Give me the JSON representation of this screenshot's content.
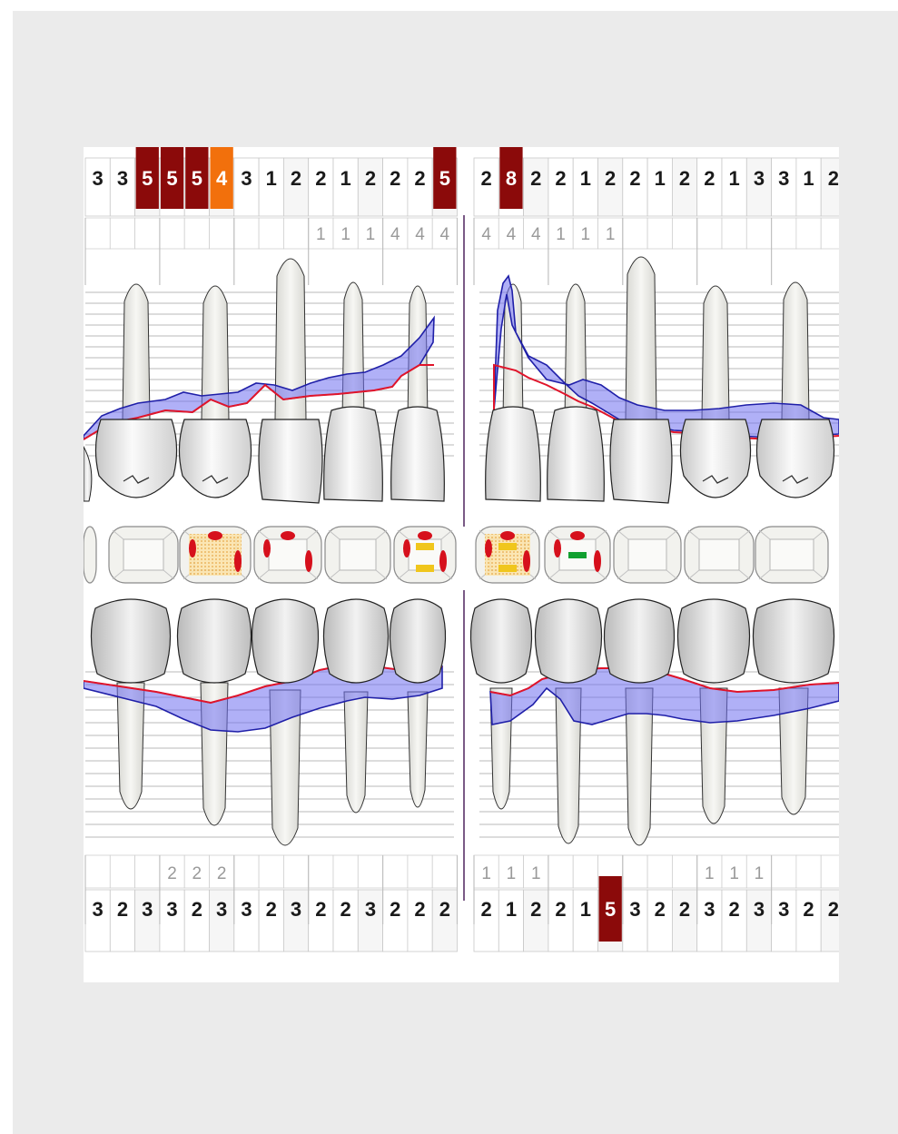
{
  "colors": {
    "frame": "#ebebeb",
    "severe": "#8b0a0a",
    "moderate": "#f2700c",
    "pocket_fill": "#6f6ff0",
    "pocket_line": "#1f1fa8",
    "gingival_line": "#e0142a",
    "caries": "#d6101c",
    "filling": "#f0c61c",
    "sealant": "#11a030",
    "divider": "#7a5a86"
  },
  "upper": {
    "left_depths": [
      {
        "value": "3",
        "level": "normal"
      },
      {
        "value": "3",
        "level": "normal"
      },
      {
        "value": "5",
        "level": "severe"
      },
      {
        "value": "5",
        "level": "severe"
      },
      {
        "value": "5",
        "level": "severe"
      },
      {
        "value": "4",
        "level": "moderate"
      },
      {
        "value": "3",
        "level": "normal"
      },
      {
        "value": "1",
        "level": "normal"
      },
      {
        "value": "2",
        "level": "normal"
      },
      {
        "value": "2",
        "level": "normal"
      },
      {
        "value": "1",
        "level": "normal"
      },
      {
        "value": "2",
        "level": "normal"
      },
      {
        "value": "2",
        "level": "normal"
      },
      {
        "value": "2",
        "level": "normal"
      },
      {
        "value": "5",
        "level": "severe"
      }
    ],
    "right_depths": [
      {
        "value": "2",
        "level": "normal"
      },
      {
        "value": "8",
        "level": "severe"
      },
      {
        "value": "2",
        "level": "normal"
      },
      {
        "value": "2",
        "level": "normal"
      },
      {
        "value": "1",
        "level": "normal"
      },
      {
        "value": "2",
        "level": "normal"
      },
      {
        "value": "2",
        "level": "normal"
      },
      {
        "value": "1",
        "level": "normal"
      },
      {
        "value": "2",
        "level": "normal"
      },
      {
        "value": "2",
        "level": "normal"
      },
      {
        "value": "1",
        "level": "normal"
      },
      {
        "value": "3",
        "level": "normal"
      },
      {
        "value": "3",
        "level": "normal"
      },
      {
        "value": "1",
        "level": "normal"
      },
      {
        "value": "2",
        "level": "normal"
      }
    ],
    "left_recession": [
      "",
      "",
      "",
      "",
      "",
      "",
      "",
      "",
      "",
      "1",
      "1",
      "1",
      "4",
      "4",
      "4"
    ],
    "right_recession": [
      "4",
      "4",
      "4",
      "1",
      "1",
      "1",
      "",
      "",
      "",
      "",
      "",
      "",
      "",
      "",
      ""
    ]
  },
  "lower": {
    "left_depths": [
      {
        "value": "3",
        "level": "normal"
      },
      {
        "value": "2",
        "level": "normal"
      },
      {
        "value": "3",
        "level": "normal"
      },
      {
        "value": "3",
        "level": "normal"
      },
      {
        "value": "2",
        "level": "normal"
      },
      {
        "value": "3",
        "level": "normal"
      },
      {
        "value": "3",
        "level": "normal"
      },
      {
        "value": "2",
        "level": "normal"
      },
      {
        "value": "3",
        "level": "normal"
      },
      {
        "value": "2",
        "level": "normal"
      },
      {
        "value": "2",
        "level": "normal"
      },
      {
        "value": "3",
        "level": "normal"
      },
      {
        "value": "2",
        "level": "normal"
      },
      {
        "value": "2",
        "level": "normal"
      },
      {
        "value": "2",
        "level": "normal"
      }
    ],
    "right_depths": [
      {
        "value": "2",
        "level": "normal"
      },
      {
        "value": "1",
        "level": "normal"
      },
      {
        "value": "2",
        "level": "normal"
      },
      {
        "value": "2",
        "level": "normal"
      },
      {
        "value": "1",
        "level": "normal"
      },
      {
        "value": "5",
        "level": "severe"
      },
      {
        "value": "3",
        "level": "normal"
      },
      {
        "value": "2",
        "level": "normal"
      },
      {
        "value": "2",
        "level": "normal"
      },
      {
        "value": "3",
        "level": "normal"
      },
      {
        "value": "2",
        "level": "normal"
      },
      {
        "value": "3",
        "level": "normal"
      },
      {
        "value": "3",
        "level": "normal"
      },
      {
        "value": "2",
        "level": "normal"
      },
      {
        "value": "2",
        "level": "normal"
      }
    ],
    "left_recession": [
      "",
      "",
      "",
      "2",
      "2",
      "2",
      "",
      "",
      "",
      "",
      "",
      "",
      "",
      "",
      ""
    ],
    "right_recession": [
      "1",
      "1",
      "1",
      "",
      "",
      "",
      "",
      "",
      "",
      "1",
      "1",
      "1",
      "",
      "",
      ""
    ]
  },
  "occlusal": [
    {
      "tooth": "left-partial",
      "marks": []
    },
    {
      "tooth": "left-1",
      "marks": []
    },
    {
      "tooth": "left-2",
      "marks": [
        "caries",
        "filling-pattern"
      ]
    },
    {
      "tooth": "left-3",
      "marks": [
        "caries"
      ]
    },
    {
      "tooth": "left-4",
      "marks": []
    },
    {
      "tooth": "left-5",
      "marks": [
        "caries",
        "filling"
      ]
    },
    {
      "tooth": "right-1",
      "marks": [
        "caries",
        "filling",
        "filling-pattern"
      ]
    },
    {
      "tooth": "right-2",
      "marks": [
        "caries",
        "sealant"
      ]
    },
    {
      "tooth": "right-3",
      "marks": []
    },
    {
      "tooth": "right-4",
      "marks": []
    },
    {
      "tooth": "right-5",
      "marks": []
    }
  ]
}
